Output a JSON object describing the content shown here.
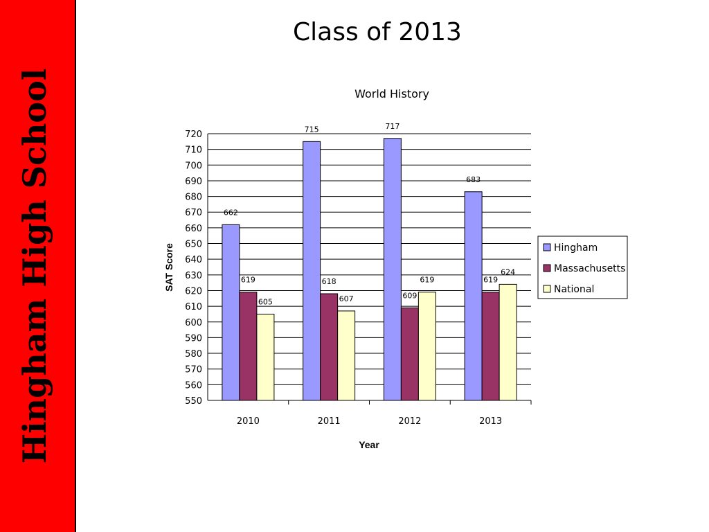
{
  "sidebar": {
    "school_name": "Hingham High School"
  },
  "slide": {
    "title": "Class of 2013"
  },
  "colors": {
    "sidebar_bg": "#ff0000",
    "series": [
      "#9999ff",
      "#993366",
      "#ffffcc"
    ]
  },
  "chart_data": {
    "type": "bar",
    "title": "World History",
    "xlabel": "Year",
    "ylabel": "SAT Score",
    "categories": [
      "2010",
      "2011",
      "2012",
      "2013"
    ],
    "ylim": [
      550,
      720
    ],
    "ytick_step": 10,
    "grid": true,
    "legend_position": "right",
    "series": [
      {
        "name": "Hingham",
        "values": [
          662,
          715,
          717,
          683
        ]
      },
      {
        "name": "Massachusetts",
        "values": [
          619,
          618,
          609,
          619
        ]
      },
      {
        "name": "National",
        "values": [
          605,
          607,
          619,
          624
        ]
      }
    ]
  }
}
